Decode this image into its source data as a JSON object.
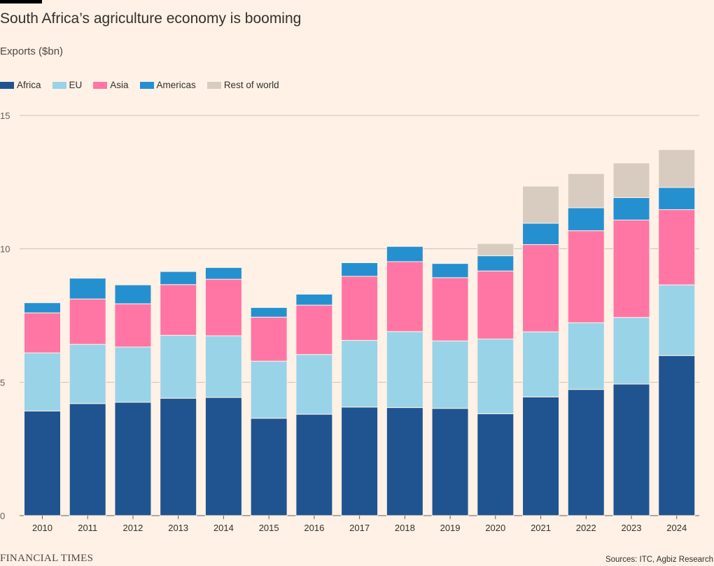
{
  "header": {
    "title": "South Africa’s agriculture economy is booming",
    "subtitle": "Exports ($bn)"
  },
  "footer": {
    "logo": "FINANCIAL TIMES",
    "source": "Sources: ITC, Agbiz Research"
  },
  "chart_data": {
    "type": "bar",
    "stacked": true,
    "title": "South Africa’s agriculture economy is booming",
    "ylabel": "Exports ($bn)",
    "xlabel": "",
    "ylim": [
      0,
      15
    ],
    "yticks": [
      0,
      5,
      10,
      15
    ],
    "grid": true,
    "legend_position": "top-left",
    "categories": [
      "2010",
      "2011",
      "2012",
      "2013",
      "2014",
      "2015",
      "2016",
      "2017",
      "2018",
      "2019",
      "2020",
      "2021",
      "2022",
      "2023",
      "2024"
    ],
    "series": [
      {
        "name": "Africa",
        "color": "#1f5490",
        "values": [
          3.92,
          4.2,
          4.25,
          4.4,
          4.43,
          3.65,
          3.8,
          4.07,
          4.05,
          4.02,
          3.82,
          4.45,
          4.73,
          4.93,
          6.0
        ]
      },
      {
        "name": "EU",
        "color": "#99d3e8",
        "values": [
          2.18,
          2.22,
          2.07,
          2.36,
          2.31,
          2.14,
          2.24,
          2.5,
          2.85,
          2.53,
          2.8,
          2.44,
          2.5,
          2.5,
          2.65
        ]
      },
      {
        "name": "Asia",
        "color": "#ff76a4",
        "values": [
          1.5,
          1.7,
          1.62,
          1.9,
          2.12,
          1.65,
          1.85,
          2.4,
          2.62,
          2.37,
          2.55,
          3.27,
          3.45,
          3.65,
          2.82
        ]
      },
      {
        "name": "Americas",
        "color": "#2590d0",
        "values": [
          0.38,
          0.78,
          0.71,
          0.49,
          0.44,
          0.36,
          0.41,
          0.51,
          0.57,
          0.53,
          0.57,
          0.8,
          0.86,
          0.84,
          0.83
        ]
      },
      {
        "name": "Rest of world",
        "color": "#d8ccc1",
        "values": [
          0,
          0,
          0,
          0,
          0,
          0,
          0,
          0,
          0,
          0,
          0.46,
          1.39,
          1.28,
          1.3,
          1.42
        ]
      }
    ]
  }
}
